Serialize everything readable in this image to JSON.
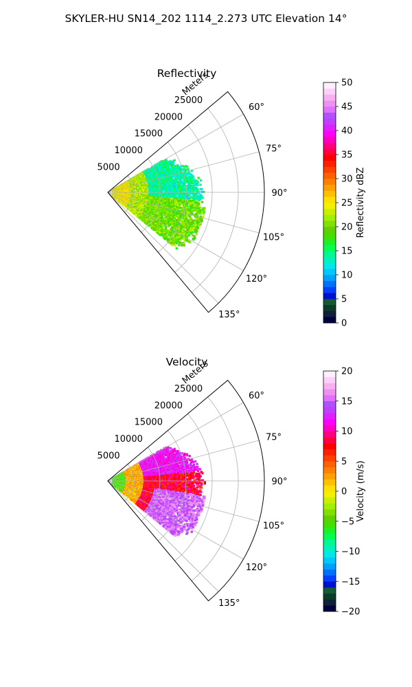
{
  "suptitle": "SKYLER-HU  SN14_202  1114_2.273 UTC Elevation 14°",
  "chart_data": [
    {
      "type": "polar-sector",
      "title": "Reflectivity",
      "radial_label": "Meters",
      "radial_ticks": [
        5000,
        10000,
        15000,
        20000,
        25000
      ],
      "radial_tick_labels": [
        "5000",
        "10000",
        "15000",
        "20000",
        "25000"
      ],
      "rlim": [
        0,
        30000
      ],
      "theta_range_deg": [
        50,
        140
      ],
      "theta_ticks_deg": [
        60,
        75,
        90,
        105,
        120,
        135
      ],
      "theta_tick_labels": [
        "60°",
        "75°",
        "90°",
        "105°",
        "120°",
        "135°"
      ],
      "grid": true,
      "colorbar": {
        "label": "Reflectivity dBZ",
        "range": [
          0,
          50
        ],
        "ticks": [
          0,
          5,
          10,
          15,
          20,
          25,
          30,
          35,
          40,
          45,
          50
        ],
        "tick_labels": [
          "0",
          "5",
          "10",
          "15",
          "20",
          "25",
          "30",
          "35",
          "40",
          "45",
          "50"
        ],
        "colors": [
          "#000040",
          "#102038",
          "#0d3b2a",
          "#145a32",
          "#0010d0",
          "#0040ff",
          "#0070ff",
          "#00a0ff",
          "#00c8ff",
          "#00e8e8",
          "#00f0c0",
          "#00f890",
          "#00ff50",
          "#20f020",
          "#40e000",
          "#60d000",
          "#80e000",
          "#a0f000",
          "#c8f000",
          "#f0f000",
          "#ffe000",
          "#ffc000",
          "#ffa000",
          "#ff8000",
          "#ff6000",
          "#ff4000",
          "#ff2000",
          "#ff0000",
          "#ff0040",
          "#ff0080",
          "#ff00c0",
          "#ff00ff",
          "#e020ff",
          "#c040ff",
          "#b050ff",
          "#e070ff",
          "#f090f0",
          "#f8b0f0",
          "#fcd0f8",
          "#ffeeff"
        ]
      },
      "echo_extent_m": [
        1000,
        19000
      ],
      "echo_theta_deg": [
        60,
        130
      ],
      "echo_values_dbz": {
        "near_range_ring": 25,
        "core": 22,
        "mid": 18,
        "outer_north": 14,
        "outer_south": 20
      }
    },
    {
      "type": "polar-sector",
      "title": "Velocity",
      "radial_label": "Meters",
      "radial_ticks": [
        5000,
        10000,
        15000,
        20000,
        25000
      ],
      "radial_tick_labels": [
        "5000",
        "10000",
        "15000",
        "20000",
        "25000"
      ],
      "rlim": [
        0,
        30000
      ],
      "theta_range_deg": [
        50,
        140
      ],
      "theta_ticks_deg": [
        60,
        75,
        90,
        105,
        120,
        135
      ],
      "theta_tick_labels": [
        "60°",
        "75°",
        "90°",
        "105°",
        "120°",
        "135°"
      ],
      "grid": true,
      "colorbar": {
        "label": "Velocity (m/s)",
        "range": [
          -20,
          20
        ],
        "ticks": [
          -20,
          -15,
          -10,
          -5,
          0,
          5,
          10,
          15,
          20
        ],
        "tick_labels": [
          "−20",
          "−15",
          "−10",
          "−5",
          "0",
          "5",
          "10",
          "15",
          "20"
        ],
        "colors": [
          "#000040",
          "#102038",
          "#0d3b2a",
          "#145a32",
          "#0010d0",
          "#0040ff",
          "#0070ff",
          "#00a0ff",
          "#00c8ff",
          "#00e8e8",
          "#00f0c0",
          "#00f890",
          "#00ff50",
          "#20f020",
          "#40e000",
          "#60d000",
          "#80e000",
          "#a0f000",
          "#c8f000",
          "#f0f000",
          "#ffe000",
          "#ffc000",
          "#ffa000",
          "#ff8000",
          "#ff6000",
          "#ff4000",
          "#ff2000",
          "#ff0000",
          "#ff0040",
          "#ff0080",
          "#ff00c0",
          "#ff00ff",
          "#e020ff",
          "#c040ff",
          "#b050ff",
          "#e070ff",
          "#f090f0",
          "#f8b0f0",
          "#fcd0f8",
          "#ffeeff"
        ]
      },
      "echo_extent_m": [
        1000,
        19000
      ],
      "echo_theta_deg": [
        60,
        130
      ],
      "echo_values_ms": {
        "near_range": -5,
        "core": 2,
        "mid": 8,
        "outer_north": 12,
        "outer_south": 15
      }
    }
  ]
}
